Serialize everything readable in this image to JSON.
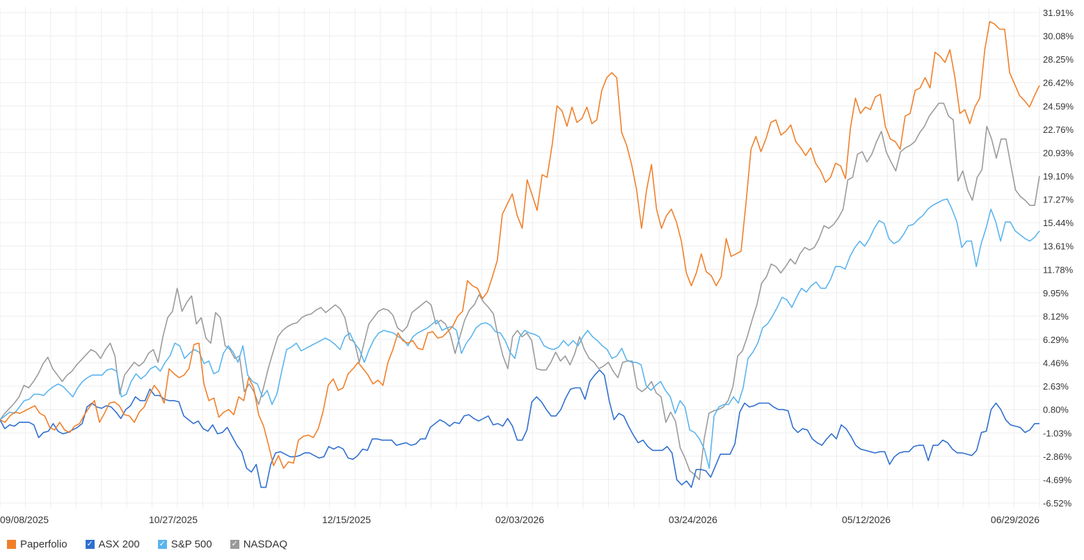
{
  "colors": {
    "paperfolio": "#f07f29",
    "asx200": "#2f6fcf",
    "sp500": "#5ab4ee",
    "nasdaq": "#9a9a9a",
    "grid": "#eeeeee",
    "axis_text": "#333333"
  },
  "legend": {
    "items": [
      {
        "label": "Paperfolio",
        "color": "#f07f29",
        "checked": false
      },
      {
        "label": "ASX 200",
        "color": "#2f6fcf",
        "checked": true
      },
      {
        "label": "S&P 500",
        "color": "#5ab4ee",
        "checked": true
      },
      {
        "label": "NASDAQ",
        "color": "#9a9a9a",
        "checked": true
      }
    ]
  },
  "chart_data": {
    "type": "line",
    "x_ticks": [
      "09/08/2025",
      "10/27/2025",
      "12/15/2025",
      "02/03/2026",
      "03/24/2026",
      "05/12/2026",
      "06/29/2026"
    ],
    "y_ticks": [
      "31.91%",
      "30.08%",
      "28.25%",
      "26.42%",
      "24.59%",
      "22.76%",
      "20.93%",
      "19.10%",
      "17.27%",
      "15.44%",
      "13.61%",
      "11.78%",
      "9.95%",
      "8.12%",
      "6.29%",
      "4.46%",
      "2.63%",
      "0.80%",
      "-1.03%",
      "-2.86%",
      "-4.69%",
      "-6.52%"
    ],
    "ylim": [
      -6.52,
      31.91
    ],
    "y_axis_position": "right",
    "grid": true,
    "legend_position": "bottom-left",
    "x_start": "09/08/2025",
    "x_end": "06/29/2026",
    "series": [
      {
        "name": "Paperfolio",
        "values": [
          0,
          -0.2,
          0.3,
          0.6,
          0.5,
          0.7,
          0.9,
          1.1,
          0.5,
          0.3,
          -0.6,
          -0.8,
          -0.2,
          -0.8,
          -1.0,
          -0.5,
          -0.3,
          0.4,
          1.0,
          1.5,
          -0.2,
          0.5,
          1.3,
          1.4,
          1.1,
          0.4,
          0.3,
          -0.2,
          0.6,
          1.0,
          1.9,
          2.7,
          2.2,
          1.3,
          4.0,
          3.6,
          3.3,
          3.5,
          4.0,
          5.9,
          6.0,
          2.8,
          1.5,
          1.7,
          0.2,
          0.6,
          0.8,
          0.4,
          1.8,
          1.5,
          3.3,
          2.5,
          0.4,
          -0.5,
          -2.0,
          -3.6,
          -2.8,
          -3.8,
          -3.3,
          -3.4,
          -1.6,
          -1.3,
          -1.2,
          -1.4,
          -0.7,
          0.7,
          2.7,
          3.2,
          2.3,
          2.5,
          3.6,
          4.0,
          4.5,
          4.0,
          3.5,
          2.8,
          3.1,
          2.7,
          4.5,
          5.5,
          6.8,
          6.2,
          6.0,
          6.2,
          5.6,
          5.5,
          6.8,
          6.9,
          6.4,
          6.5,
          6.9,
          7.3,
          8.1,
          8.5,
          10.9,
          10.5,
          10.3,
          9.5,
          10.0,
          11.2,
          12.5,
          16.1,
          16.9,
          17.7,
          16.0,
          15.0,
          18.8,
          17.6,
          16.4,
          19.2,
          19.0,
          21.5,
          24.6,
          24.2,
          23.0,
          24.5,
          23.3,
          23.6,
          24.5,
          23.2,
          23.5,
          25.8,
          26.8,
          27.2,
          26.8,
          22.5,
          21.5,
          20.0,
          18.0,
          15.0,
          18.0,
          20.0,
          16.5,
          15.0,
          16.0,
          16.5,
          15.5,
          14.0,
          11.5,
          10.5,
          11.5,
          13.0,
          11.6,
          11.3,
          10.5,
          11.2,
          14.2,
          12.8,
          13.0,
          13.2,
          17.0,
          21.2,
          22.2,
          21.0,
          22.0,
          23.3,
          23.5,
          22.3,
          22.6,
          23.1,
          21.8,
          21.3,
          20.7,
          21.3,
          20.1,
          19.5,
          18.6,
          19.0,
          20.1,
          19.9,
          18.9,
          22.9,
          25.2,
          24.0,
          24.5,
          24.3,
          25.3,
          25.5,
          23.0,
          22.0,
          21.8,
          21.2,
          23.8,
          24.0,
          25.8,
          26.0,
          26.8,
          26.0,
          28.8,
          28.5,
          28.0,
          29.0,
          26.8,
          24.0,
          24.3,
          23.2,
          24.5,
          25.2,
          29.0,
          31.2,
          31.0,
          30.6,
          30.6,
          27.2,
          26.3,
          25.4,
          25.0,
          24.5,
          25.4,
          26.2
        ]
      },
      {
        "name": "ASX 200",
        "values": [
          0,
          -0.7,
          -0.4,
          -0.5,
          -0.2,
          -0.2,
          -0.2,
          -0.4,
          -1.4,
          -1.0,
          -0.9,
          -0.3,
          -0.9,
          -1.1,
          -1.0,
          -0.8,
          -0.6,
          -0.3,
          1.0,
          1.3,
          1.0,
          0.9,
          1.1,
          1.0,
          0.6,
          0.1,
          0.8,
          1.1,
          1.8,
          1.5,
          1.5,
          2.4,
          1.9,
          1.9,
          1.6,
          1.5,
          1.5,
          1.4,
          0.3,
          0.0,
          -0.3,
          -0.1,
          -0.7,
          -0.9,
          -0.4,
          -1.1,
          -1.0,
          -0.6,
          -1.3,
          -2.0,
          -2.5,
          -3.8,
          -4.1,
          -3.5,
          -5.3,
          -5.3,
          -3.5,
          -2.6,
          -2.5,
          -2.7,
          -2.9,
          -2.9,
          -2.8,
          -2.6,
          -2.6,
          -2.8,
          -3.0,
          -2.9,
          -2.1,
          -2.3,
          -2.1,
          -2.3,
          -3.0,
          -3.1,
          -2.8,
          -2.3,
          -2.4,
          -1.5,
          -1.5,
          -1.6,
          -1.6,
          -1.6,
          -2.0,
          -1.9,
          -1.8,
          -2.0,
          -1.9,
          -1.5,
          -1.5,
          -0.6,
          -0.3,
          0.0,
          -0.2,
          -0.5,
          -0.2,
          -0.3,
          0.3,
          0.4,
          0.1,
          -0.1,
          0.1,
          0.3,
          -0.4,
          -0.3,
          -0.5,
          0.1,
          -0.5,
          -1.6,
          -1.6,
          -0.8,
          1.4,
          1.8,
          1.4,
          0.8,
          0.3,
          0.3,
          0.8,
          1.7,
          2.4,
          2.5,
          2.5,
          1.6,
          3.0,
          3.5,
          3.9,
          3.5,
          1.5,
          0.0,
          0.5,
          0.3,
          -0.5,
          -1.2,
          -1.8,
          -1.6,
          -2.1,
          -2.4,
          -2.4,
          -2.4,
          -2.1,
          -2.6,
          -4.7,
          -5.1,
          -4.8,
          -5.3,
          -3.9,
          -3.9,
          -4.0,
          -4.5,
          -3.6,
          -2.7,
          -2.7,
          -2.7,
          -1.9,
          0.6,
          1.3,
          1.0,
          1.1,
          1.3,
          1.3,
          1.3,
          1.0,
          0.8,
          0.8,
          0.7,
          -0.6,
          -1.0,
          -0.7,
          -0.8,
          -1.5,
          -1.8,
          -2.0,
          -1.5,
          -1.1,
          -1.5,
          -0.4,
          -0.7,
          -1.3,
          -2.0,
          -2.3,
          -2.4,
          -2.5,
          -2.6,
          -2.5,
          -2.5,
          -3.5,
          -2.9,
          -2.6,
          -2.5,
          -2.5,
          -2.1,
          -2.0,
          -2.0,
          -3.2,
          -2.0,
          -2.0,
          -1.6,
          -1.8,
          -2.3,
          -2.6,
          -2.6,
          -2.7,
          -2.8,
          -2.4,
          -1.0,
          -0.9,
          0.8,
          1.3,
          0.8,
          0.0,
          -0.4,
          -0.5,
          -0.6,
          -1.0,
          -0.8,
          -0.3,
          -0.3
        ]
      },
      {
        "name": "S&P 500",
        "values": [
          0,
          0.3,
          0.6,
          0.5,
          1.0,
          1.5,
          1.6,
          2.0,
          2.0,
          1.9,
          2.3,
          2.6,
          2.8,
          2.6,
          2.2,
          1.8,
          2.5,
          3.0,
          3.3,
          3.5,
          3.5,
          3.5,
          3.9,
          4.0,
          3.8,
          1.8,
          2.0,
          3.0,
          3.6,
          3.2,
          3.5,
          4.0,
          4.2,
          3.8,
          4.5,
          5.0,
          6.0,
          5.8,
          4.8,
          5.2,
          5.5,
          5.3,
          4.4,
          4.6,
          3.6,
          3.8,
          5.2,
          5.8,
          5.3,
          4.5,
          5.8,
          3.5,
          3.0,
          2.8,
          1.8,
          2.3,
          1.2,
          2.0,
          3.8,
          5.5,
          5.7,
          6.0,
          5.4,
          5.6,
          5.8,
          6.0,
          6.2,
          6.4,
          6.2,
          5.9,
          5.5,
          6.5,
          6.8,
          6.0,
          5.5,
          4.5,
          5.5,
          6.3,
          6.8,
          7.0,
          6.9,
          6.8,
          6.5,
          6.3,
          5.8,
          6.5,
          6.8,
          7.0,
          7.2,
          7.5,
          7.8,
          7.0,
          7.2,
          7.3,
          7.0,
          5.2,
          6.0,
          6.5,
          7.2,
          7.5,
          7.6,
          7.4,
          6.9,
          6.8,
          6.2,
          5.3,
          4.8,
          6.5,
          7.0,
          6.8,
          6.7,
          6.5,
          5.8,
          5.6,
          5.5,
          5.7,
          6.2,
          5.8,
          6.2,
          5.8,
          6.5,
          7.0,
          6.5,
          6.2,
          5.8,
          5.5,
          4.8,
          5.0,
          5.6,
          4.7,
          4.5,
          4.5,
          4.3,
          2.7,
          2.3,
          2.7,
          3.0,
          2.3,
          1.8,
          0.5,
          1.5,
          1.0,
          -0.8,
          -1.0,
          -1.5,
          -2.3,
          -3.8,
          0.3,
          1.0,
          1.2,
          1.2,
          1.8,
          1.3,
          2.5,
          4.8,
          5.3,
          6.0,
          7.2,
          7.5,
          8.1,
          8.8,
          9.6,
          9.4,
          8.8,
          9.6,
          10.3,
          10.0,
          10.5,
          10.8,
          10.3,
          10.3,
          11.0,
          12.0,
          12.0,
          11.8,
          12.8,
          13.5,
          14.0,
          13.6,
          14.2,
          15.0,
          15.6,
          15.4,
          14.2,
          13.8,
          14.0,
          14.5,
          15.2,
          15.3,
          15.7,
          16.0,
          16.5,
          16.8,
          17.0,
          17.2,
          17.3,
          16.5,
          15.5,
          13.5,
          14.0,
          14.0,
          12.0,
          13.8,
          15.0,
          16.5,
          15.5,
          14.0,
          15.5,
          15.5,
          14.8,
          14.5,
          14.2,
          14.0,
          14.3,
          14.8
        ]
      },
      {
        "name": "NASDAQ",
        "values": [
          0,
          0.5,
          0.9,
          1.3,
          1.8,
          2.7,
          2.5,
          3.0,
          3.6,
          4.4,
          4.9,
          4.0,
          3.5,
          3.0,
          3.5,
          3.8,
          4.3,
          4.7,
          5.1,
          5.5,
          5.3,
          4.8,
          5.5,
          6.0,
          5.0,
          2.0,
          3.5,
          4.0,
          4.5,
          4.2,
          4.5,
          5.2,
          5.5,
          4.5,
          6.5,
          8.0,
          8.5,
          10.3,
          8.5,
          9.2,
          9.7,
          7.5,
          8.0,
          6.4,
          6.0,
          8.4,
          8.0,
          5.8,
          5.5,
          4.8,
          5.0,
          2.2,
          2.8,
          2.2,
          1.2,
          2.5,
          4.0,
          5.3,
          6.5,
          7.0,
          7.3,
          7.5,
          7.6,
          8.0,
          8.2,
          8.3,
          8.6,
          8.8,
          8.4,
          8.7,
          9.0,
          8.7,
          8.0,
          6.3,
          6.1,
          4.5,
          6.0,
          7.5,
          8.0,
          8.5,
          8.7,
          8.6,
          8.2,
          7.2,
          6.9,
          7.3,
          8.4,
          8.7,
          9.0,
          9.3,
          9.0,
          7.5,
          7.8,
          7.5,
          6.7,
          5.2,
          6.5,
          7.8,
          8.6,
          9.0,
          9.8,
          9.2,
          8.8,
          8.3,
          6.5,
          5.0,
          4.0,
          6.5,
          7.0,
          6.5,
          6.8,
          6.2,
          4.0,
          3.9,
          3.9,
          4.5,
          5.3,
          4.6,
          5.0,
          4.3,
          5.2,
          6.5,
          5.5,
          4.8,
          4.5,
          4.0,
          4.2,
          4.5,
          3.8,
          3.3,
          4.5,
          4.6,
          4.6,
          2.5,
          2.2,
          2.5,
          3.0,
          2.1,
          1.8,
          -0.2,
          0.6,
          -0.1,
          -2.2,
          -3.0,
          -4.0,
          -4.3,
          -4.7,
          -1.5,
          0.5,
          0.7,
          0.8,
          1.0,
          1.5,
          2.6,
          5.0,
          5.4,
          6.5,
          7.8,
          9.0,
          10.7,
          11.2,
          12.2,
          12.0,
          11.5,
          12.0,
          12.6,
          12.2,
          13.0,
          13.5,
          13.3,
          13.5,
          14.2,
          15.2,
          15.0,
          15.3,
          15.8,
          16.5,
          18.8,
          19.0,
          20.8,
          21.0,
          20.2,
          20.8,
          21.8,
          22.6,
          21.0,
          20.2,
          19.5,
          21.0,
          21.3,
          21.5,
          21.8,
          22.5,
          23.0,
          23.8,
          24.3,
          24.8,
          24.8,
          23.8,
          23.5,
          18.7,
          19.5,
          18.0,
          17.2,
          19.0,
          19.6,
          23.0,
          22.0,
          20.5,
          22.0,
          22.0,
          20.0,
          18.0,
          17.5,
          17.2,
          16.8,
          16.8,
          19.1
        ]
      }
    ]
  }
}
